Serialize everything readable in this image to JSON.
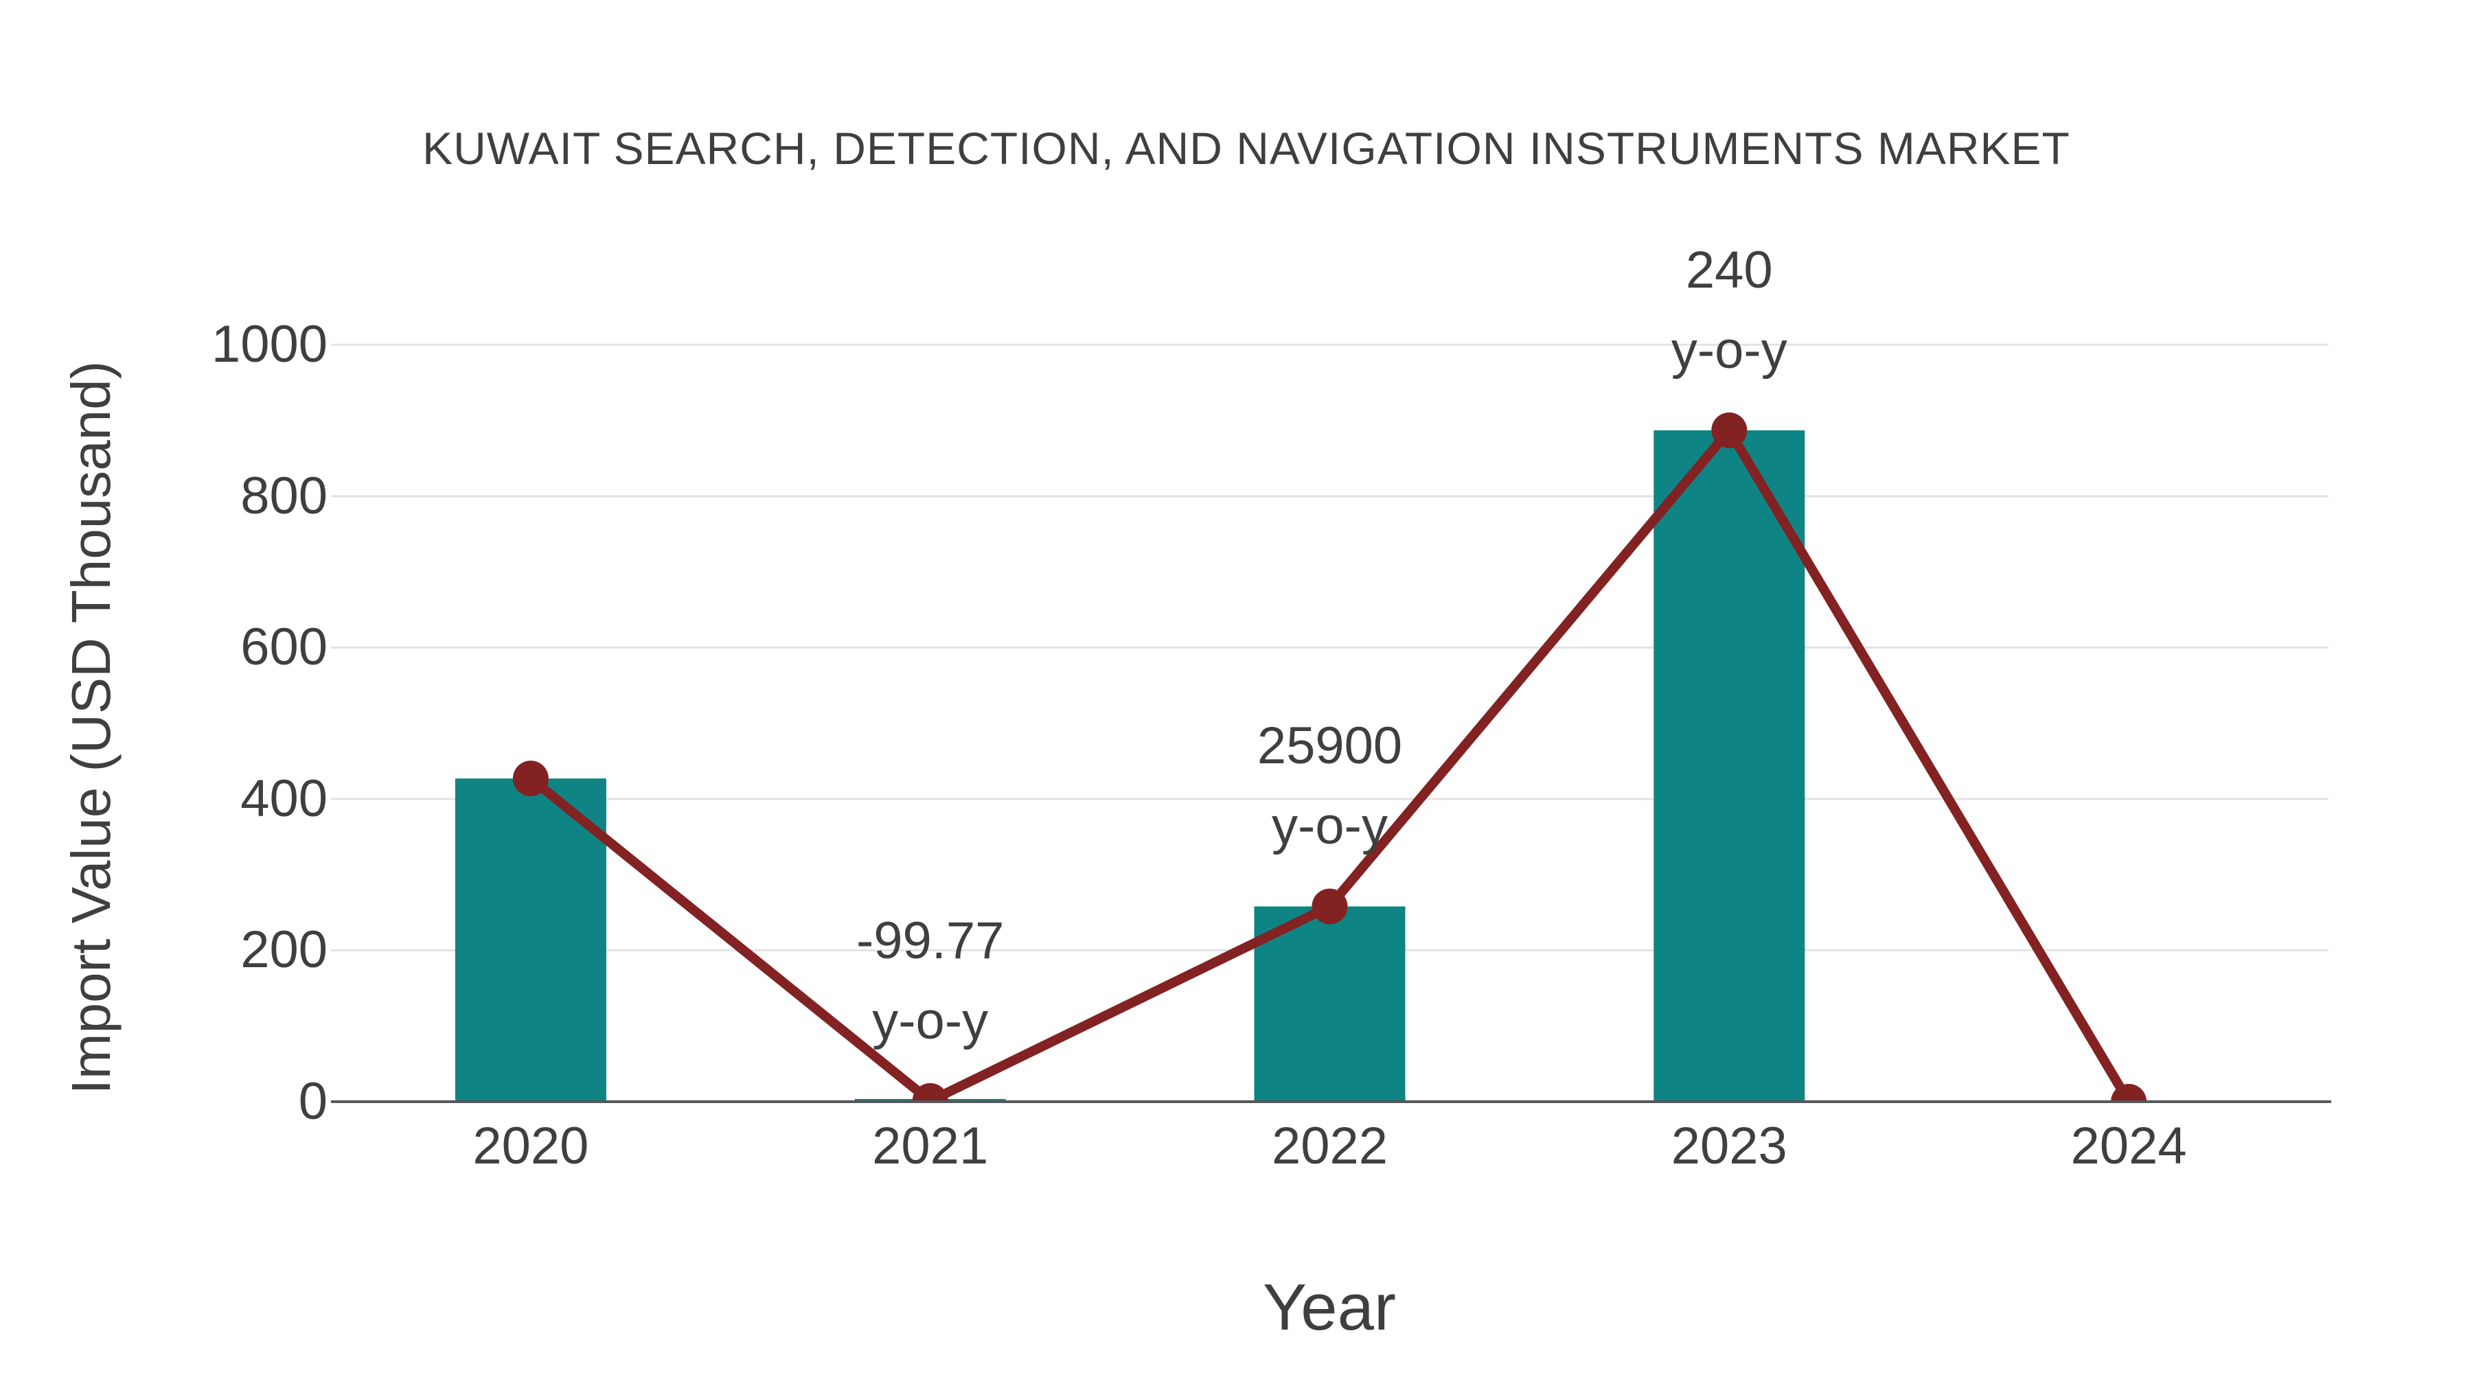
{
  "chart_data": {
    "type": "bar",
    "subtype": "bar-with-line-overlay",
    "title": "KUWAIT SEARCH, DETECTION, AND NAVIGATION INSTRUMENTS MARKET",
    "xlabel": "Year",
    "ylabel": "Import Value (USD Thousand)",
    "categories": [
      "2020",
      "2021",
      "2022",
      "2023",
      "2024"
    ],
    "series": [
      {
        "name": "import-value-bars",
        "type": "bar",
        "color": "#0E8584",
        "values": [
          427,
          1,
          258,
          887,
          0
        ]
      },
      {
        "name": "import-value-trend",
        "type": "line",
        "color": "#832222",
        "marker": "circle",
        "marker_color": "#832222",
        "values": [
          427,
          1,
          258,
          887,
          0
        ]
      }
    ],
    "yticks": [
      0,
      200,
      400,
      600,
      800,
      1000
    ],
    "ylim": [
      0,
      1100
    ],
    "grid": "horizontal",
    "legend": "none",
    "annotations": [
      {
        "x_index": 1,
        "line1": "-99.77",
        "line2": "y-o-y"
      },
      {
        "x_index": 2,
        "line1": "25900",
        "line2": "y-o-y"
      },
      {
        "x_index": 3,
        "line1": "240",
        "line2": "y-o-y"
      }
    ],
    "colors": {
      "text": "#3F3F3F",
      "grid": "#E3E3E3",
      "axis": "#55575A"
    }
  }
}
